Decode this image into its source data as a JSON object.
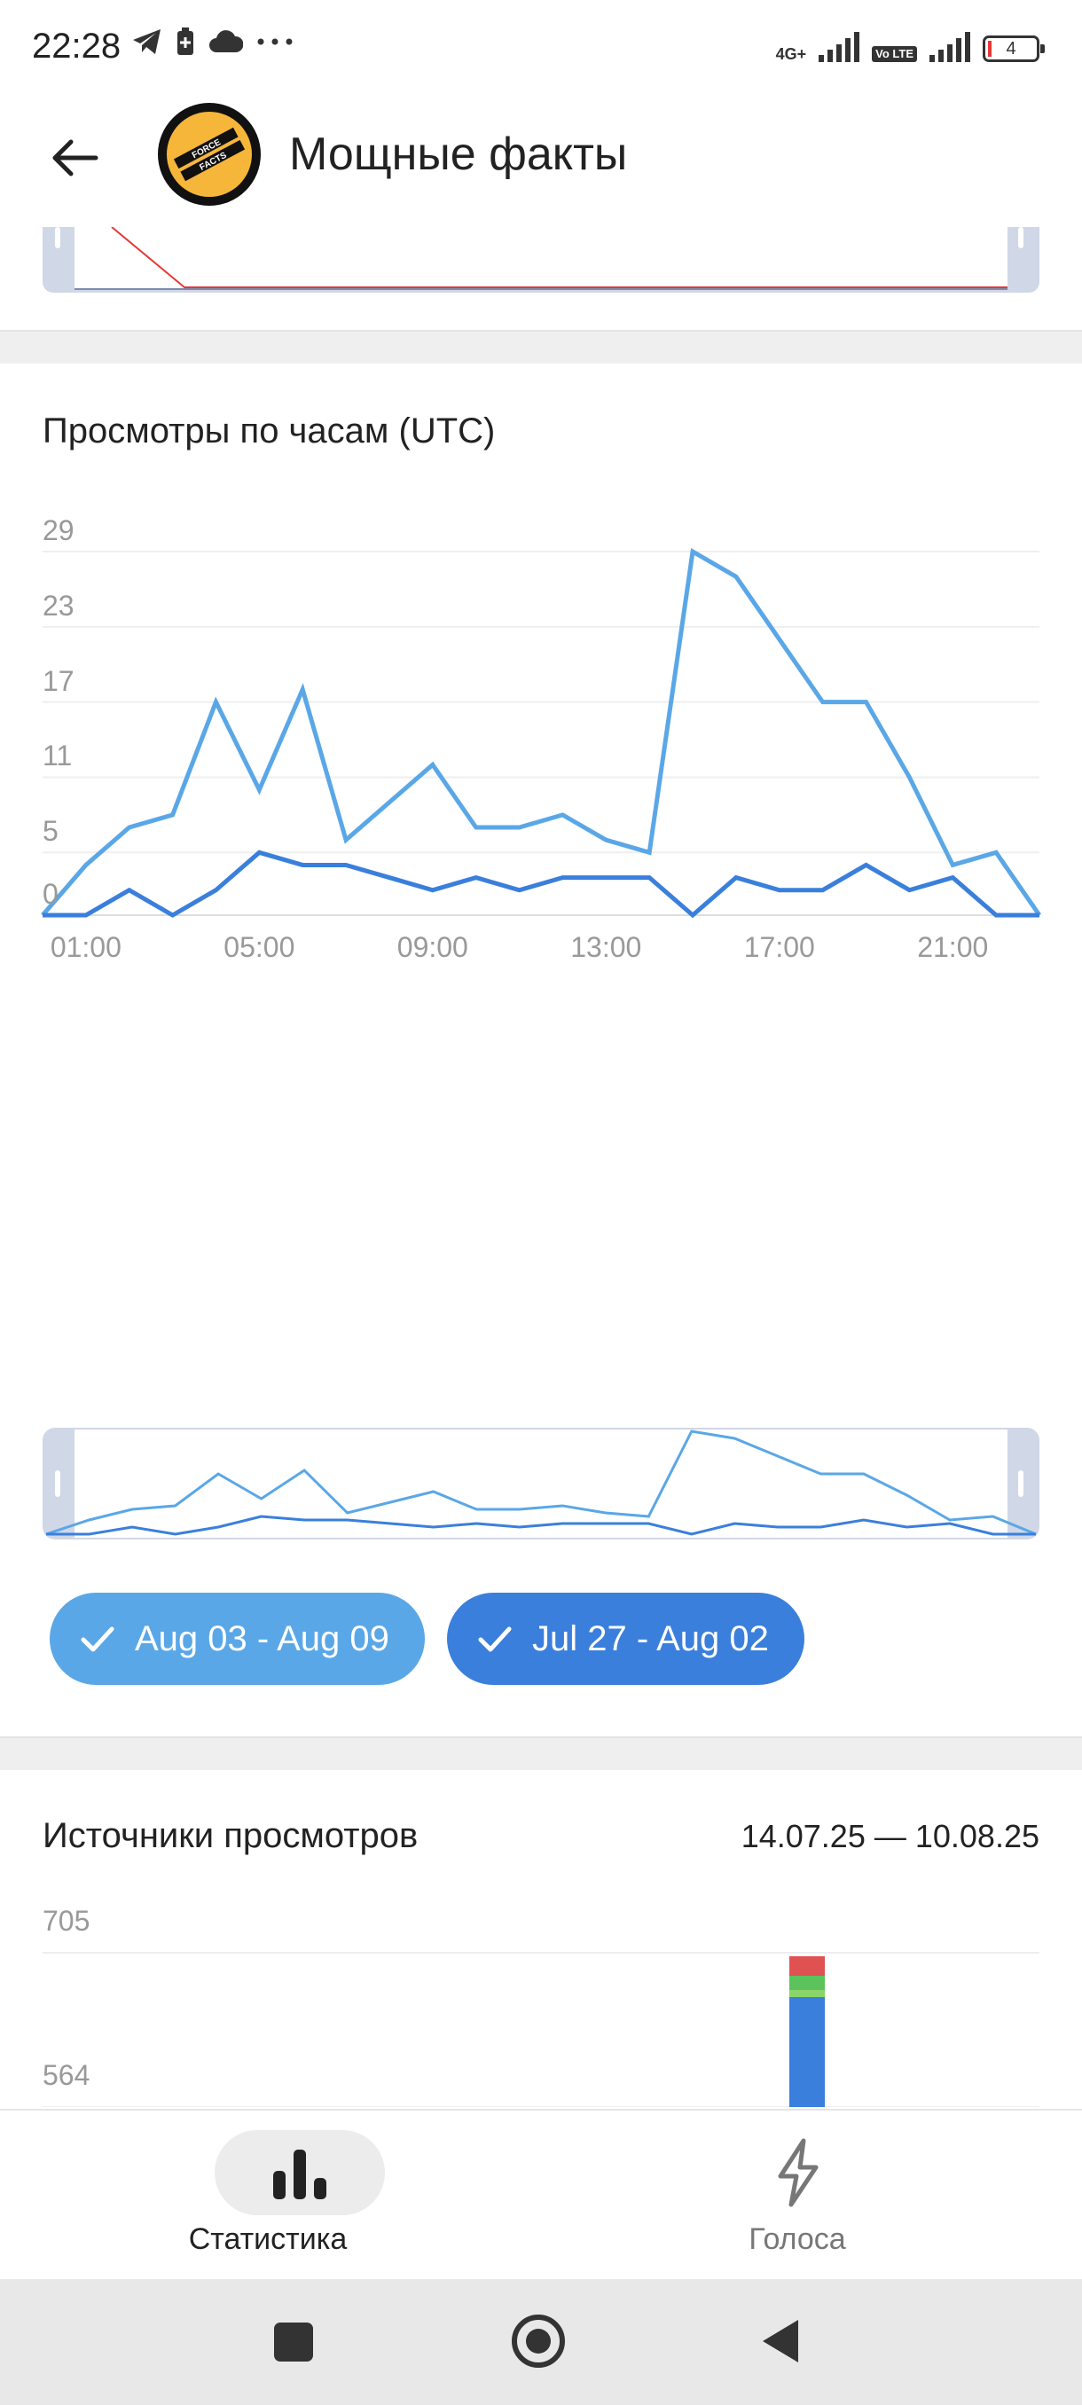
{
  "status_bar": {
    "time": "22:28",
    "network_label": "4G+",
    "volte_label": "Vo LTE",
    "battery_level": "4",
    "icons": [
      "telegram-icon",
      "battery-saver-icon",
      "cloud-icon",
      "more-dots-icon"
    ]
  },
  "header": {
    "channel_title": "Мощные факты",
    "avatar_text_line1": "FORCE",
    "avatar_text_line2": "FACTS",
    "back_icon": "arrow-left-icon"
  },
  "hourly_views": {
    "title": "Просмотры по часам (UTC)",
    "y_ticks": [
      "29",
      "23",
      "17",
      "11",
      "5",
      "0"
    ],
    "x_ticks": [
      "01:00",
      "05:00",
      "09:00",
      "13:00",
      "17:00",
      "21:00"
    ],
    "chips": [
      {
        "label": "Aug 03 - Aug 09",
        "color": "#5aa7e7"
      },
      {
        "label": "Jul 27 - Aug 02",
        "color": "#3a7fdc"
      }
    ]
  },
  "view_sources": {
    "title": "Источники просмотров",
    "date_range": "14.07.25 — 10.08.25",
    "y_ticks": [
      "705",
      "564"
    ]
  },
  "bottom_nav": {
    "items": [
      {
        "label": "Статистика",
        "icon": "bar-chart-icon",
        "active": true
      },
      {
        "label": "Голоса",
        "icon": "lightning-icon",
        "active": false
      }
    ]
  },
  "chart_data": [
    {
      "type": "line",
      "title": "Просмотры по часам (UTC)",
      "x": [
        "00:00",
        "01:00",
        "02:00",
        "03:00",
        "04:00",
        "05:00",
        "06:00",
        "07:00",
        "08:00",
        "09:00",
        "10:00",
        "11:00",
        "12:00",
        "13:00",
        "14:00",
        "15:00",
        "16:00",
        "17:00",
        "18:00",
        "19:00",
        "20:00",
        "21:00",
        "22:00",
        "23:00"
      ],
      "x_tick_labels": [
        "01:00",
        "05:00",
        "09:00",
        "13:00",
        "17:00",
        "21:00"
      ],
      "ylim": [
        0,
        29
      ],
      "y_ticks": [
        0,
        5,
        11,
        17,
        23,
        29
      ],
      "grid": true,
      "series": [
        {
          "name": "Aug 03 - Aug 09",
          "color": "#5aa7e7",
          "values": [
            0,
            4,
            7,
            8,
            17,
            10,
            18,
            6,
            9,
            12,
            7,
            7,
            8,
            6,
            5,
            29,
            27,
            22,
            17,
            17,
            11,
            4,
            5,
            0
          ]
        },
        {
          "name": "Jul 27 - Aug 02",
          "color": "#3a7fdc",
          "values": [
            0,
            0,
            2,
            0,
            2,
            5,
            4,
            4,
            3,
            2,
            3,
            2,
            3,
            3,
            3,
            0,
            3,
            2,
            2,
            4,
            2,
            3,
            0,
            0
          ]
        }
      ]
    },
    {
      "type": "bar",
      "title": "Источники просмотров",
      "y_ticks": [
        705,
        564
      ],
      "note": "partially visible stacked bar"
    }
  ]
}
